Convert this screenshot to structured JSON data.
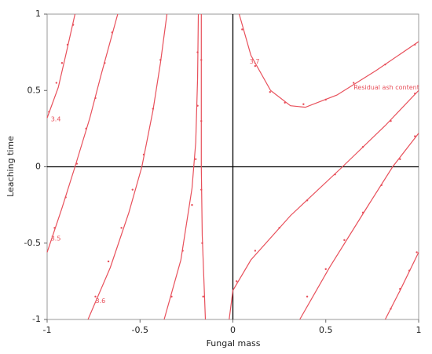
{
  "chart_data": {
    "type": "contour",
    "xlabel": "Fungal mass",
    "ylabel": "Leaching time",
    "xlim": [
      -1,
      1
    ],
    "ylim": [
      -1,
      1
    ],
    "xticks": [
      -1,
      -0.5,
      0,
      0.5,
      1
    ],
    "yticks": [
      -1,
      -0.5,
      0,
      0.5,
      1
    ],
    "zero_lines": true,
    "color": "#e8505b",
    "series": [
      {
        "style": "line",
        "x": [
          -1,
          -0.94,
          -0.9,
          -0.85
        ],
        "y": [
          0.32,
          0.52,
          0.73,
          1
        ]
      },
      {
        "style": "line",
        "x": [
          -1,
          -0.92,
          -0.85,
          -0.77,
          -0.71,
          -0.62
        ],
        "y": [
          -0.56,
          -0.27,
          0,
          0.32,
          0.6,
          1
        ]
      },
      {
        "style": "line",
        "x": [
          -0.78,
          -0.66,
          -0.56,
          -0.49,
          -0.43,
          -0.39,
          -0.355
        ],
        "y": [
          -1,
          -0.66,
          -0.3,
          0,
          0.37,
          0.68,
          1
        ]
      },
      {
        "style": "line",
        "x": [
          -0.37,
          -0.28,
          -0.22,
          -0.2,
          -0.19,
          -0.186
        ],
        "y": [
          -1,
          -0.61,
          -0.14,
          0.16,
          0.58,
          1
        ]
      },
      {
        "style": "line",
        "x": [
          -0.148,
          -0.165,
          -0.17,
          -0.17
        ],
        "y": [
          -1,
          -0.45,
          0,
          1
        ]
      },
      {
        "style": "line",
        "x": [
          0.034,
          0.097,
          0.203,
          0.31,
          0.39,
          0.56,
          0.77,
          1
        ],
        "y": [
          1,
          0.73,
          0.5,
          0.4,
          0.39,
          0.47,
          0.63,
          0.82
        ]
      },
      {
        "style": "line",
        "x": [
          -0.02,
          0,
          0.097,
          0.31,
          0.59,
          0.82,
          1
        ],
        "y": [
          -1,
          -0.81,
          -0.61,
          -0.32,
          0,
          0.27,
          0.5
        ]
      },
      {
        "style": "line",
        "x": [
          0.36,
          0.52,
          0.73,
          0.86,
          1
        ],
        "y": [
          -1,
          -0.66,
          -0.25,
          0,
          0.22
        ]
      },
      {
        "style": "line",
        "x": [
          0.82,
          0.9,
          1
        ],
        "y": [
          -1,
          -0.81,
          -0.56
        ]
      },
      {
        "style": "dots",
        "x": [
          -0.99,
          -0.95,
          -0.92,
          -0.89,
          -0.86
        ],
        "y": [
          0.36,
          0.55,
          0.68,
          0.8,
          0.93
        ]
      },
      {
        "style": "dots",
        "x": [
          -0.96,
          -0.9,
          -0.84,
          -0.79,
          -0.74,
          -0.69,
          -0.65
        ],
        "y": [
          -0.4,
          -0.2,
          0.02,
          0.25,
          0.45,
          0.68,
          0.88
        ]
      },
      {
        "style": "dots",
        "x": [
          -0.74,
          -0.67,
          -0.6,
          -0.54,
          -0.48,
          -0.43,
          -0.39
        ],
        "y": [
          -0.85,
          -0.62,
          -0.4,
          -0.15,
          0.08,
          0.38,
          0.7
        ]
      },
      {
        "style": "dots",
        "x": [
          -0.33,
          -0.27,
          -0.22,
          -0.2,
          -0.19,
          -0.19
        ],
        "y": [
          -0.85,
          -0.55,
          -0.25,
          0.05,
          0.4,
          0.75
        ]
      },
      {
        "style": "dots",
        "x": [
          -0.16,
          -0.165,
          -0.17,
          -0.17,
          -0.17
        ],
        "y": [
          -0.85,
          -0.5,
          -0.15,
          0.3,
          0.7
        ]
      },
      {
        "style": "dots",
        "x": [
          0.05,
          0.12,
          0.2,
          0.28,
          0.38,
          0.5,
          0.65,
          0.82,
          0.98
        ],
        "y": [
          0.9,
          0.66,
          0.49,
          0.42,
          0.41,
          0.44,
          0.55,
          0.67,
          0.8
        ]
      },
      {
        "style": "dots",
        "x": [
          0.02,
          0.12,
          0.25,
          0.4,
          0.55,
          0.7,
          0.85,
          0.98
        ],
        "y": [
          -0.75,
          -0.55,
          -0.4,
          -0.22,
          -0.05,
          0.13,
          0.3,
          0.48
        ]
      },
      {
        "style": "dots",
        "x": [
          0.4,
          0.5,
          0.6,
          0.7,
          0.8,
          0.9,
          0.98
        ],
        "y": [
          -0.85,
          -0.67,
          -0.48,
          -0.3,
          -0.12,
          0.05,
          0.2
        ]
      },
      {
        "style": "dots",
        "x": [
          0.85,
          0.9,
          0.95,
          0.99
        ],
        "y": [
          -0.93,
          -0.8,
          -0.68,
          -0.56
        ]
      }
    ],
    "annotations": [
      {
        "text": "3.4",
        "x": -0.98,
        "y": 0.31
      },
      {
        "text": "3.5",
        "x": -0.98,
        "y": -0.47
      },
      {
        "text": "3.6",
        "x": -0.74,
        "y": -0.88
      },
      {
        "text": "3.7",
        "x": 0.09,
        "y": 0.69
      },
      {
        "text": "Residual ash content",
        "x": 0.65,
        "y": 0.52
      }
    ]
  }
}
